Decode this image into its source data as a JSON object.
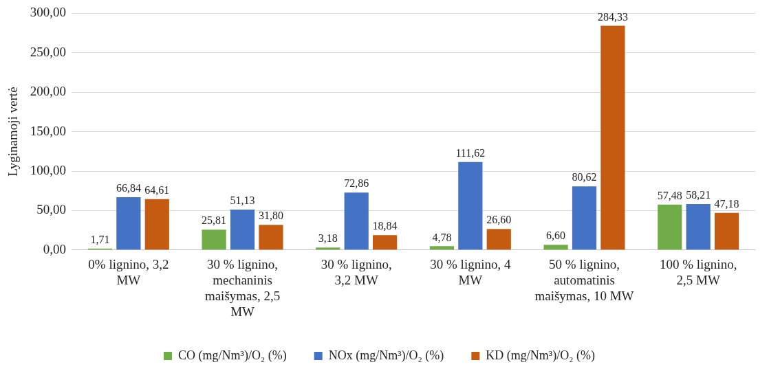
{
  "chart_data": {
    "type": "bar",
    "ylabel": "Lyginamoji vertė",
    "categories": [
      "0% lignino, 3,2 MW",
      "30 % lignino, mechaninis maišymas, 2,5 MW",
      "30 % lignino, 3,2 MW",
      "30 % lignino, 4 MW",
      "50 % lignino, automatinis maišymas, 10 MW",
      "100 % lignino, 2,5 MW"
    ],
    "series": [
      {
        "name": "CO (mg/Nm³)/O₂ (%)",
        "color": "#70ad47",
        "values": [
          1.71,
          25.81,
          3.18,
          4.78,
          6.6,
          57.48
        ],
        "value_labels": [
          "1,71",
          "25,81",
          "3,18",
          "4,78",
          "6,60",
          "57,48"
        ]
      },
      {
        "name": "NOx (mg/Nm³)/O₂ (%)",
        "color": "#4472c4",
        "values": [
          66.84,
          51.13,
          72.86,
          111.62,
          80.62,
          58.21
        ],
        "value_labels": [
          "66,84",
          "51,13",
          "72,86",
          "111,62",
          "80,62",
          "58,21"
        ]
      },
      {
        "name": "KD (mg/Nm³)/O₂ (%)",
        "color": "#c55a11",
        "values": [
          64.61,
          31.8,
          18.84,
          26.6,
          284.33,
          47.18
        ],
        "value_labels": [
          "64,61",
          "31,80",
          "18,84",
          "26,60",
          "284,33",
          "47,18"
        ]
      }
    ],
    "ylim": [
      0,
      300
    ],
    "yticks": [
      {
        "value": 0,
        "label": "0,00"
      },
      {
        "value": 50,
        "label": "50,00"
      },
      {
        "value": 100,
        "label": "100,00"
      },
      {
        "value": 150,
        "label": "150,00"
      },
      {
        "value": 200,
        "label": "200,00"
      },
      {
        "value": 250,
        "label": "250,00"
      },
      {
        "value": 300,
        "label": "300,00"
      }
    ],
    "grid": "y",
    "legend": "bottom"
  }
}
